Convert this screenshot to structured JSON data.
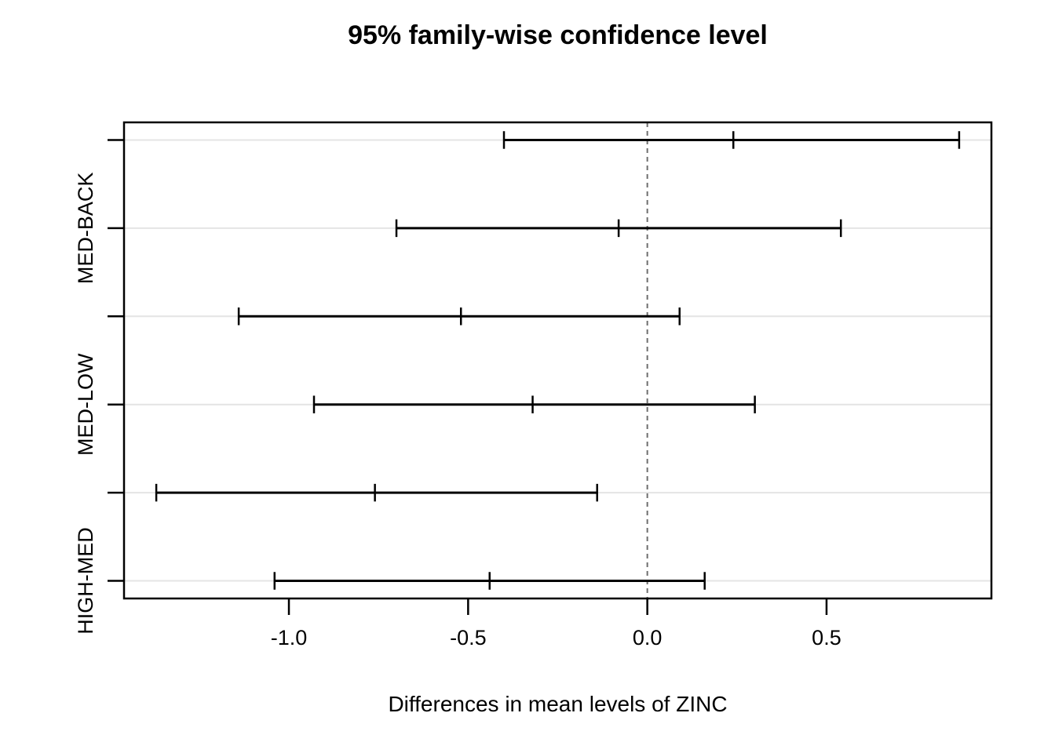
{
  "chart_data": {
    "type": "errorbar",
    "orientation": "horizontal",
    "title": "95% family-wise confidence level",
    "xlabel": "Differences in mean levels of ZINC",
    "ylabel": "",
    "conf_level": "95%",
    "grid": "light horizontal line per row",
    "legend": "none",
    "xlim": [
      -1.46,
      0.96
    ],
    "x_ticks": [
      {
        "value": -1.0,
        "label": "-1.0"
      },
      {
        "value": -0.5,
        "label": "-0.5"
      },
      {
        "value": 0.0,
        "label": "0.0"
      },
      {
        "value": 0.5,
        "label": "0.5"
      }
    ],
    "zero_reference_line": {
      "value": 0.0,
      "style": "dashed"
    },
    "rows": [
      {
        "y_label": "",
        "lwr": -0.4,
        "diff": 0.24,
        "upr": 0.87
      },
      {
        "y_label": "MED-BACK",
        "lwr": -0.7,
        "diff": -0.08,
        "upr": 0.54
      },
      {
        "y_label": "",
        "lwr": -1.14,
        "diff": -0.52,
        "upr": 0.09
      },
      {
        "y_label": "MED-LOW",
        "lwr": -0.93,
        "diff": -0.32,
        "upr": 0.3
      },
      {
        "y_label": "",
        "lwr": -1.37,
        "diff": -0.76,
        "upr": -0.14
      },
      {
        "y_label": "HIGH-MED",
        "lwr": -1.04,
        "diff": -0.44,
        "upr": 0.16
      }
    ],
    "colors": {
      "interval": "#000000",
      "box": "#000000",
      "grid": "#e4e4e4",
      "zero_line": "#6e6e6e",
      "background": "#ffffff",
      "text": "#000000"
    }
  }
}
